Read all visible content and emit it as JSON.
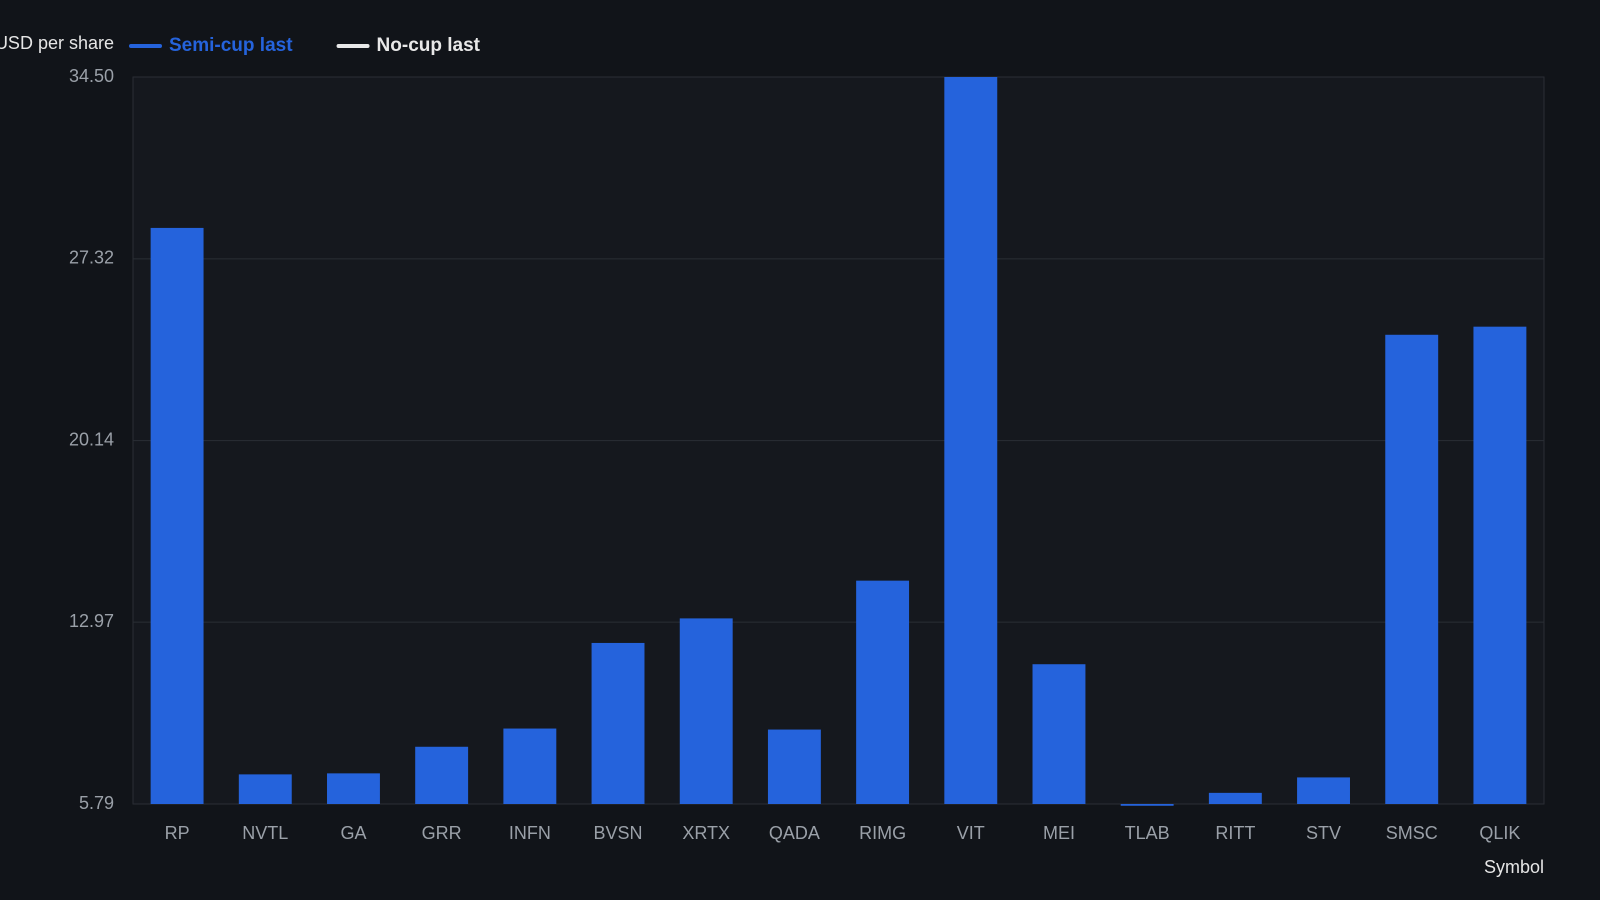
{
  "chart_data": {
    "type": "bar",
    "y_label": "USD per share",
    "x_label": "Symbol",
    "categories": [
      "RP",
      "NVTL",
      "GA",
      "GRR",
      "INFN",
      "BVSN",
      "XRTX",
      "QADA",
      "RIMG",
      "VIT",
      "MEI",
      "TLAB",
      "RITT",
      "STV",
      "SMSC",
      "QLIK"
    ],
    "series": [
      {
        "name": "Semi-cup last",
        "color": "#2563dc",
        "values": [
          28.54,
          6.96,
          7.0,
          8.05,
          8.77,
          12.15,
          13.12,
          8.73,
          14.61,
          34.5,
          11.31,
          5.72,
          6.23,
          6.84,
          24.32,
          24.64
        ]
      },
      {
        "name": "No-cup last",
        "color": "#e8e8e8",
        "values": [
          null,
          null,
          null,
          null,
          null,
          null,
          null,
          null,
          null,
          null,
          null,
          null,
          null,
          null,
          null,
          null
        ]
      }
    ],
    "ylim": [
      5.79,
      34.5
    ],
    "yticks": [
      5.79,
      12.97,
      20.14,
      27.32,
      {
        "value": 34.5,
        "label": "34.50"
      }
    ],
    "grid": true
  }
}
